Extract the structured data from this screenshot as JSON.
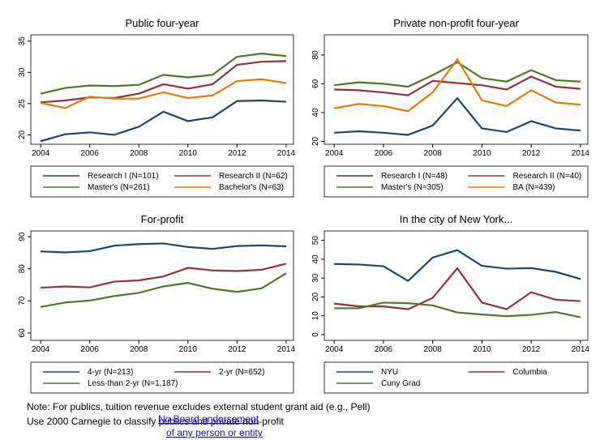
{
  "chart_data": [
    {
      "type": "line",
      "title": "Public four-year",
      "x": [
        2004,
        2005,
        2006,
        2007,
        2008,
        2009,
        2010,
        2011,
        2012,
        2013,
        2014
      ],
      "xlim": [
        2003.6,
        2014.3
      ],
      "xticks": [
        2004,
        2006,
        2008,
        2010,
        2012,
        2014
      ],
      "ylim": [
        18.5,
        36
      ],
      "yticks": [
        20,
        25,
        30,
        35
      ],
      "series": [
        {
          "name": "Research I (N=101)",
          "color": "#1a476f",
          "values": [
            19.0,
            20.1,
            20.4,
            20.0,
            21.3,
            23.7,
            22.2,
            22.8,
            25.4,
            25.5,
            25.3
          ]
        },
        {
          "name": "Research II (N=62)",
          "color": "#90353b",
          "values": [
            25.2,
            25.5,
            26.0,
            25.9,
            26.6,
            28.1,
            27.4,
            28.1,
            31.2,
            31.7,
            31.8
          ]
        },
        {
          "name": "Master's (N=261)",
          "color": "#55752f",
          "values": [
            26.6,
            27.5,
            27.9,
            27.8,
            28.0,
            29.6,
            29.2,
            29.6,
            32.5,
            33.0,
            32.6
          ]
        },
        {
          "name": "Bachelor's (N=63)",
          "color": "#e37e00",
          "values": [
            25.1,
            24.3,
            26.1,
            25.8,
            25.8,
            26.8,
            25.9,
            26.3,
            28.6,
            28.9,
            28.3
          ]
        }
      ]
    },
    {
      "type": "line",
      "title": "Private non-profit four-year",
      "x": [
        2004,
        2005,
        2006,
        2007,
        2008,
        2009,
        2010,
        2011,
        2012,
        2013,
        2014
      ],
      "xlim": [
        2003.6,
        2014.3
      ],
      "xticks": [
        2004,
        2006,
        2008,
        2010,
        2012,
        2014
      ],
      "ylim": [
        18,
        94
      ],
      "yticks": [
        20,
        40,
        60,
        80
      ],
      "series": [
        {
          "name": "Research I (N=48)",
          "color": "#1a476f",
          "values": [
            26,
            27,
            26,
            24.5,
            31,
            50,
            29,
            26.5,
            34,
            29,
            27.5
          ]
        },
        {
          "name": "Research II (N=40)",
          "color": "#90353b",
          "values": [
            56,
            55.5,
            54,
            52,
            62,
            60.5,
            59,
            56,
            65,
            58,
            56.5
          ]
        },
        {
          "name": "Master's (N=305)",
          "color": "#55752f",
          "values": [
            59,
            61,
            60,
            58,
            66,
            75,
            64,
            61.5,
            69.5,
            62.5,
            61.5
          ]
        },
        {
          "name": "BA (N=439)",
          "color": "#e37e00",
          "values": [
            43,
            46,
            44.5,
            41,
            54,
            77,
            48.5,
            44.5,
            55.5,
            47,
            45.5
          ]
        }
      ]
    },
    {
      "type": "line",
      "title": "For-profit",
      "x": [
        2004,
        2005,
        2006,
        2007,
        2008,
        2009,
        2010,
        2011,
        2012,
        2013,
        2014
      ],
      "xlim": [
        2003.6,
        2014.3
      ],
      "xticks": [
        2004,
        2006,
        2008,
        2010,
        2012,
        2014
      ],
      "ylim": [
        57.7,
        91.8
      ],
      "yticks": [
        60,
        70,
        80,
        90
      ],
      "series": [
        {
          "name": "4-yr (N=213)",
          "color": "#1a476f",
          "values": [
            85.4,
            85.1,
            85.5,
            87.2,
            87.7,
            87.9,
            86.8,
            86.2,
            87.1,
            87.3,
            87.0
          ]
        },
        {
          "name": "2-yr (N=652)",
          "color": "#90353b",
          "values": [
            74.1,
            74.5,
            74.2,
            76.0,
            76.4,
            77.6,
            80.3,
            79.5,
            79.3,
            79.7,
            81.6
          ]
        },
        {
          "name": "Less-than 2-yr (N=1,187)",
          "color": "#55752f",
          "values": [
            68.1,
            69.5,
            70.1,
            71.5,
            72.5,
            74.5,
            75.6,
            73.8,
            72.8,
            73.9,
            78.6
          ]
        }
      ]
    },
    {
      "type": "line",
      "title": "In the city of New York...",
      "x": [
        2004,
        2005,
        2006,
        2007,
        2008,
        2009,
        2010,
        2011,
        2012,
        2013,
        2014
      ],
      "xlim": [
        2003.6,
        2014.3
      ],
      "xticks": [
        2004,
        2006,
        2008,
        2010,
        2012,
        2014
      ],
      "ylim": [
        -3,
        55
      ],
      "yticks": [
        0,
        10,
        20,
        30,
        40,
        50
      ],
      "series": [
        {
          "name": "NYU",
          "color": "#1a476f",
          "values": [
            37.5,
            37.2,
            36.3,
            28.5,
            40.9,
            44.8,
            36.5,
            35,
            35.3,
            33.3,
            29.5
          ]
        },
        {
          "name": "Columbia",
          "color": "#90353b",
          "values": [
            16.5,
            15,
            15,
            13.5,
            19.5,
            35.2,
            17,
            13.5,
            22.5,
            18.5,
            17.8
          ]
        },
        {
          "name": "Cuny Grad",
          "color": "#55752f",
          "values": [
            14,
            14,
            17,
            16.7,
            15.5,
            11.8,
            10.7,
            9.8,
            10.5,
            12,
            9.2
          ]
        }
      ]
    }
  ],
  "notes": [
    "Note: For publics, tuition revenue excludes external student grant aid (e.g., Pell)",
    "Use 2000 Carnegie to classify publics and private non-profit"
  ],
  "link": [
    "No Board endorsement",
    "of any person or entity"
  ]
}
